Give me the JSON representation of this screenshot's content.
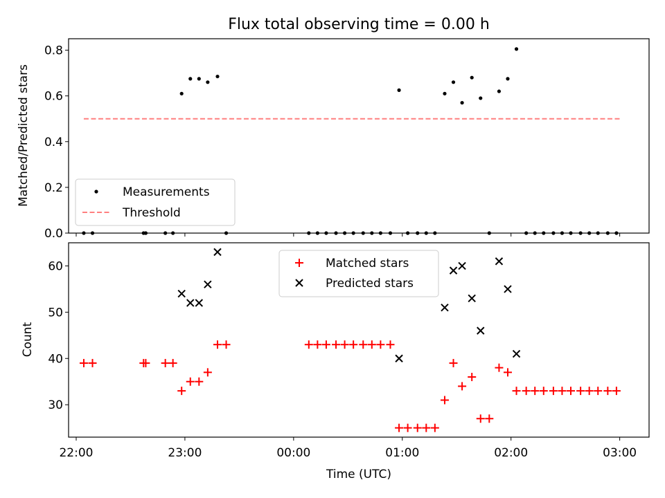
{
  "chart_data": [
    {
      "type": "scatter",
      "title": "Flux total observing time = 0.00 h",
      "ylabel": "Matched/Predicted stars",
      "xlabel": "",
      "xlim_hours": [
        -2.07,
        3.27
      ],
      "ylim": [
        0,
        0.85
      ],
      "yticks": [
        "0.0",
        "0.2",
        "0.4",
        "0.6",
        "0.8"
      ],
      "legend_position": "lower-left",
      "legend": [
        "Measurements",
        "Threshold"
      ],
      "threshold": {
        "value": 0.5,
        "x_start": -1.93,
        "x_end": 3.0,
        "color": "#ff7f7f",
        "style": "dashed"
      },
      "series": [
        {
          "name": "Measurements",
          "color": "#000000",
          "marker": "dot",
          "points": [
            [
              -1.93,
              0.0
            ],
            [
              -1.85,
              0.0
            ],
            [
              -1.38,
              0.0
            ],
            [
              -1.36,
              0.0
            ],
            [
              -1.18,
              0.0
            ],
            [
              -1.11,
              0.0
            ],
            [
              -1.03,
              0.61
            ],
            [
              -0.95,
              0.675
            ],
            [
              -0.87,
              0.675
            ],
            [
              -0.79,
              0.66
            ],
            [
              -0.7,
              0.685
            ],
            [
              -0.62,
              0.0
            ],
            [
              0.14,
              0.0
            ],
            [
              0.22,
              0.0
            ],
            [
              0.3,
              0.0
            ],
            [
              0.39,
              0.0
            ],
            [
              0.47,
              0.0
            ],
            [
              0.55,
              0.0
            ],
            [
              0.64,
              0.0
            ],
            [
              0.72,
              0.0
            ],
            [
              0.8,
              0.0
            ],
            [
              0.89,
              0.0
            ],
            [
              0.97,
              0.625
            ],
            [
              1.05,
              0.0
            ],
            [
              1.14,
              0.0
            ],
            [
              1.22,
              0.0
            ],
            [
              1.3,
              0.0
            ],
            [
              1.39,
              0.61
            ],
            [
              1.47,
              0.66
            ],
            [
              1.55,
              0.57
            ],
            [
              1.64,
              0.68
            ],
            [
              1.72,
              0.59
            ],
            [
              1.8,
              0.0
            ],
            [
              1.89,
              0.62
            ],
            [
              1.97,
              0.675
            ],
            [
              2.05,
              0.805
            ],
            [
              2.14,
              0.0
            ],
            [
              2.22,
              0.0
            ],
            [
              2.3,
              0.0
            ],
            [
              2.39,
              0.0
            ],
            [
              2.47,
              0.0
            ],
            [
              2.55,
              0.0
            ],
            [
              2.64,
              0.0
            ],
            [
              2.72,
              0.0
            ],
            [
              2.8,
              0.0
            ],
            [
              2.89,
              0.0
            ],
            [
              2.97,
              0.0
            ]
          ]
        }
      ]
    },
    {
      "type": "scatter",
      "title": "",
      "ylabel": "Count",
      "xlabel": "Time (UTC)",
      "xlim_hours": [
        -2.07,
        3.27
      ],
      "ylim": [
        23,
        65
      ],
      "yticks": [
        "30",
        "40",
        "50",
        "60"
      ],
      "xticks": [
        "22:00",
        "23:00",
        "00:00",
        "01:00",
        "02:00",
        "03:00"
      ],
      "xtick_hours": [
        -2,
        -1,
        0,
        1,
        2,
        3
      ],
      "legend_position": "upper-center",
      "legend": [
        "Matched stars",
        "Predicted stars"
      ],
      "series": [
        {
          "name": "Matched stars",
          "color": "#ff0000",
          "marker": "plus",
          "points": [
            [
              -1.93,
              39
            ],
            [
              -1.85,
              39
            ],
            [
              -1.38,
              39
            ],
            [
              -1.36,
              39
            ],
            [
              -1.18,
              39
            ],
            [
              -1.11,
              39
            ],
            [
              -1.03,
              33
            ],
            [
              -0.95,
              35
            ],
            [
              -0.87,
              35
            ],
            [
              -0.79,
              37
            ],
            [
              -0.7,
              43
            ],
            [
              -0.62,
              43
            ],
            [
              0.14,
              43
            ],
            [
              0.22,
              43
            ],
            [
              0.3,
              43
            ],
            [
              0.39,
              43
            ],
            [
              0.47,
              43
            ],
            [
              0.55,
              43
            ],
            [
              0.64,
              43
            ],
            [
              0.72,
              43
            ],
            [
              0.8,
              43
            ],
            [
              0.89,
              43
            ],
            [
              0.97,
              25
            ],
            [
              1.05,
              25
            ],
            [
              1.14,
              25
            ],
            [
              1.22,
              25
            ],
            [
              1.3,
              25
            ],
            [
              1.39,
              31
            ],
            [
              1.47,
              39
            ],
            [
              1.55,
              34
            ],
            [
              1.64,
              36
            ],
            [
              1.72,
              27
            ],
            [
              1.8,
              27
            ],
            [
              1.89,
              38
            ],
            [
              1.97,
              37
            ],
            [
              2.05,
              33
            ],
            [
              2.14,
              33
            ],
            [
              2.22,
              33
            ],
            [
              2.3,
              33
            ],
            [
              2.39,
              33
            ],
            [
              2.47,
              33
            ],
            [
              2.55,
              33
            ],
            [
              2.64,
              33
            ],
            [
              2.72,
              33
            ],
            [
              2.8,
              33
            ],
            [
              2.89,
              33
            ],
            [
              2.97,
              33
            ]
          ]
        },
        {
          "name": "Predicted stars",
          "color": "#000000",
          "marker": "x",
          "points": [
            [
              -1.03,
              54
            ],
            [
              -0.95,
              52
            ],
            [
              -0.87,
              52
            ],
            [
              -0.79,
              56
            ],
            [
              -0.7,
              63
            ],
            [
              0.97,
              40
            ],
            [
              1.39,
              51
            ],
            [
              1.47,
              59
            ],
            [
              1.55,
              60
            ],
            [
              1.64,
              53
            ],
            [
              1.72,
              46
            ],
            [
              1.89,
              61
            ],
            [
              1.97,
              55
            ],
            [
              2.05,
              41
            ]
          ]
        }
      ]
    }
  ]
}
